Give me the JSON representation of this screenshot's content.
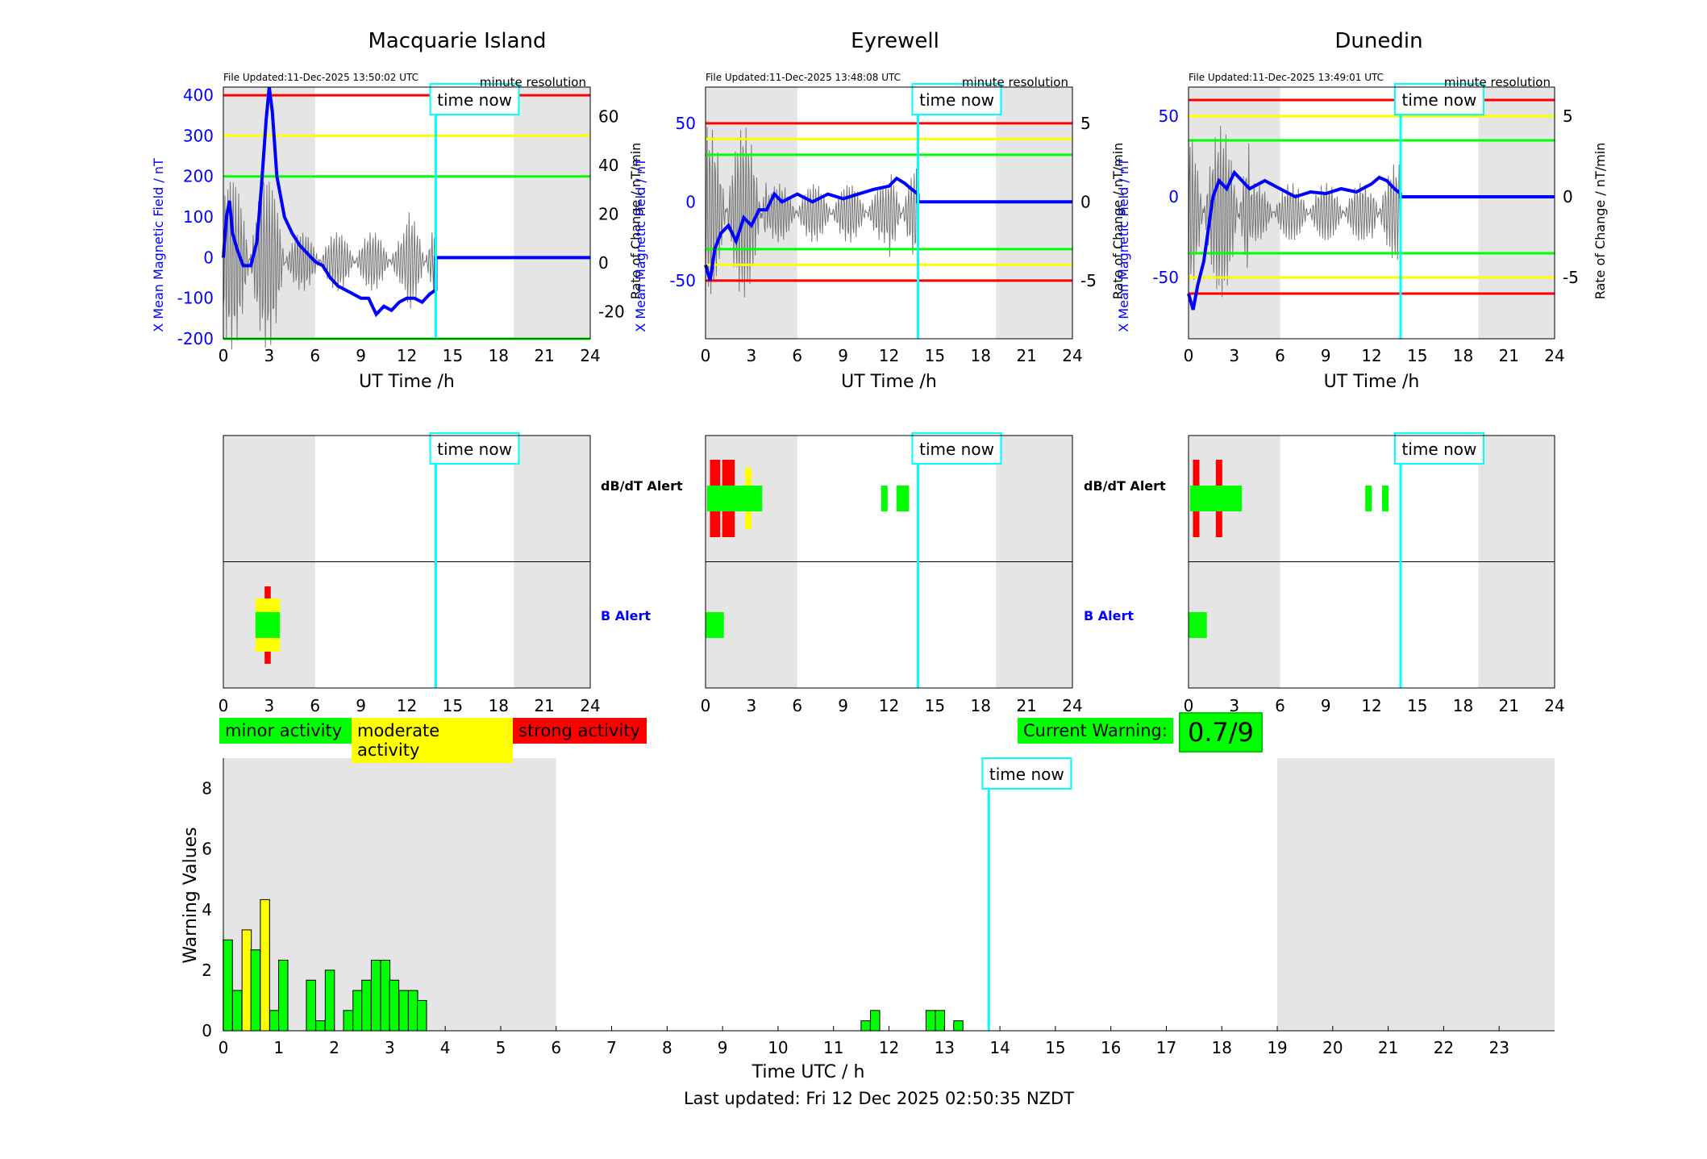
{
  "stations": [
    {
      "name": "Macquarie Island",
      "file_updated": "File Updated:11-Dec-2025 13:50:02 UTC",
      "resolution": "minute resolution",
      "left_ticks": [
        "400",
        "300",
        "200",
        "100",
        "0",
        "-100",
        "-200"
      ],
      "right_ticks": [
        "60",
        "40",
        "20",
        "0",
        "-20"
      ]
    },
    {
      "name": "Eyrewell",
      "file_updated": "File Updated:11-Dec-2025 13:48:08 UTC",
      "resolution": "minute resolution",
      "left_ticks": [
        "50",
        "0",
        "-50"
      ],
      "right_ticks": [
        "5",
        "0",
        "-5"
      ]
    },
    {
      "name": "Dunedin",
      "file_updated": "File Updated:11-Dec-2025 13:49:01 UTC",
      "resolution": "minute resolution",
      "left_ticks": [
        "50",
        "0",
        "-50"
      ],
      "right_ticks": [
        "5",
        "0",
        "-5"
      ]
    }
  ],
  "labels": {
    "time_now": "time now",
    "ut_time": "UT Time /h",
    "y_left": "X Mean Magnetic Field / nT",
    "y_right": "Rate of Change / nT/min",
    "dbdt_alert": "dB/dT Alert",
    "b_alert": "B Alert",
    "warning_values": "Warning Values",
    "time_utc": "Time UTC / h"
  },
  "hour_ticks": [
    "0",
    "3",
    "6",
    "9",
    "12",
    "15",
    "18",
    "21",
    "24"
  ],
  "bottom_hour_ticks": [
    "0",
    "1",
    "2",
    "3",
    "4",
    "5",
    "6",
    "7",
    "8",
    "9",
    "10",
    "11",
    "12",
    "13",
    "14",
    "15",
    "16",
    "17",
    "18",
    "19",
    "20",
    "21",
    "22",
    "23"
  ],
  "warning_ticks": [
    "0",
    "2",
    "4",
    "6",
    "8"
  ],
  "legend": {
    "minor": "minor activity",
    "moderate": "moderate activity",
    "strong": "strong activity"
  },
  "current_warning": {
    "label": "Current Warning:",
    "value": "0.7/9"
  },
  "footer": "Last updated: Fri 12 Dec 2025 02:50:35 NZDT",
  "colors": {
    "minor": "#00ff00",
    "moderate": "#ffff00",
    "strong": "#ff0000",
    "time_now": "#00ffff",
    "shade": "#e5e5e5",
    "field": "#0000ff"
  },
  "chart_data": [
    {
      "type": "bar",
      "title": "",
      "xlabel": "Time UTC / h",
      "ylabel": "Warning Values",
      "ylim": [
        0,
        9
      ],
      "xlim": [
        0,
        24
      ],
      "time_now_h": 13.8,
      "shaded_hours": [
        [
          0,
          6
        ],
        [
          19,
          24
        ]
      ],
      "bars": [
        {
          "x": 0.08,
          "v": 3.0,
          "level": "minor"
        },
        {
          "x": 0.25,
          "v": 1.33,
          "level": "minor"
        },
        {
          "x": 0.42,
          "v": 3.33,
          "level": "moderate"
        },
        {
          "x": 0.58,
          "v": 2.67,
          "level": "minor"
        },
        {
          "x": 0.75,
          "v": 4.33,
          "level": "moderate"
        },
        {
          "x": 0.92,
          "v": 0.67,
          "level": "minor"
        },
        {
          "x": 1.08,
          "v": 2.33,
          "level": "minor"
        },
        {
          "x": 1.58,
          "v": 1.67,
          "level": "minor"
        },
        {
          "x": 1.75,
          "v": 0.33,
          "level": "minor"
        },
        {
          "x": 1.92,
          "v": 2.0,
          "level": "minor"
        },
        {
          "x": 2.25,
          "v": 0.67,
          "level": "minor"
        },
        {
          "x": 2.42,
          "v": 1.33,
          "level": "minor"
        },
        {
          "x": 2.58,
          "v": 1.67,
          "level": "minor"
        },
        {
          "x": 2.75,
          "v": 2.33,
          "level": "minor"
        },
        {
          "x": 2.92,
          "v": 2.33,
          "level": "minor"
        },
        {
          "x": 3.08,
          "v": 1.67,
          "level": "minor"
        },
        {
          "x": 3.25,
          "v": 1.33,
          "level": "minor"
        },
        {
          "x": 3.42,
          "v": 1.33,
          "level": "minor"
        },
        {
          "x": 3.58,
          "v": 1.0,
          "level": "minor"
        },
        {
          "x": 11.58,
          "v": 0.33,
          "level": "minor"
        },
        {
          "x": 11.75,
          "v": 0.67,
          "level": "minor"
        },
        {
          "x": 12.75,
          "v": 0.67,
          "level": "minor"
        },
        {
          "x": 12.92,
          "v": 0.67,
          "level": "minor"
        },
        {
          "x": 13.25,
          "v": 0.33,
          "level": "minor"
        }
      ]
    },
    {
      "station": "Macquarie Island",
      "type": "line",
      "xlim": [
        0,
        24
      ],
      "ylim": [
        -200,
        420
      ],
      "ylim_right": [
        -31,
        72
      ],
      "time_now_h": 13.9,
      "shaded_hours": [
        [
          0,
          6
        ],
        [
          19,
          24
        ]
      ],
      "thresholds": [
        {
          "y": 400,
          "level": "strong"
        },
        {
          "y": 300,
          "level": "moderate"
        },
        {
          "y": 200,
          "level": "minor"
        },
        {
          "y": -200,
          "level": "minor"
        }
      ],
      "field": [
        [
          0,
          0
        ],
        [
          0.2,
          100
        ],
        [
          0.4,
          140
        ],
        [
          0.6,
          60
        ],
        [
          0.9,
          20
        ],
        [
          1.3,
          -20
        ],
        [
          1.8,
          -20
        ],
        [
          2.2,
          40
        ],
        [
          2.5,
          180
        ],
        [
          2.8,
          340
        ],
        [
          3.0,
          420
        ],
        [
          3.2,
          360
        ],
        [
          3.5,
          200
        ],
        [
          4.0,
          100
        ],
        [
          4.5,
          60
        ],
        [
          5.0,
          30
        ],
        [
          5.5,
          10
        ],
        [
          6,
          -10
        ],
        [
          6.5,
          -20
        ],
        [
          7,
          -50
        ],
        [
          7.5,
          -70
        ],
        [
          8,
          -80
        ],
        [
          8.5,
          -90
        ],
        [
          9,
          -100
        ],
        [
          9.5,
          -100
        ],
        [
          10,
          -140
        ],
        [
          10.5,
          -120
        ],
        [
          11,
          -130
        ],
        [
          11.5,
          -110
        ],
        [
          12,
          -100
        ],
        [
          12.5,
          -100
        ],
        [
          13,
          -110
        ],
        [
          13.5,
          -90
        ],
        [
          13.9,
          -80
        ],
        [
          13.9,
          0
        ],
        [
          24,
          0
        ]
      ]
    },
    {
      "station": "Eyrewell",
      "type": "line",
      "xlim": [
        0,
        24
      ],
      "ylim": [
        -87,
        73
      ],
      "ylim_right": [
        -8.7,
        7.3
      ],
      "time_now_h": 13.9,
      "shaded_hours": [
        [
          0,
          6
        ],
        [
          19,
          24
        ]
      ],
      "thresholds": [
        {
          "y": 50,
          "level": "strong"
        },
        {
          "y": 40,
          "level": "moderate"
        },
        {
          "y": 30,
          "level": "minor"
        },
        {
          "y": -30,
          "level": "minor"
        },
        {
          "y": -40,
          "level": "moderate"
        },
        {
          "y": -50,
          "level": "strong"
        }
      ],
      "field": [
        [
          0,
          -40
        ],
        [
          0.3,
          -50
        ],
        [
          0.6,
          -30
        ],
        [
          1,
          -20
        ],
        [
          1.5,
          -15
        ],
        [
          2,
          -25
        ],
        [
          2.5,
          -10
        ],
        [
          3,
          -15
        ],
        [
          3.5,
          -5
        ],
        [
          4,
          -5
        ],
        [
          4.5,
          5
        ],
        [
          5,
          0
        ],
        [
          6,
          5
        ],
        [
          7,
          0
        ],
        [
          8,
          5
        ],
        [
          9,
          2
        ],
        [
          10,
          5
        ],
        [
          11,
          8
        ],
        [
          12,
          10
        ],
        [
          12.5,
          15
        ],
        [
          13,
          12
        ],
        [
          13.5,
          8
        ],
        [
          13.9,
          5
        ],
        [
          13.9,
          0
        ],
        [
          24,
          0
        ]
      ]
    },
    {
      "station": "Dunedin",
      "type": "line",
      "xlim": [
        0,
        24
      ],
      "ylim": [
        -88,
        68
      ],
      "ylim_right": [
        -8.8,
        6.8
      ],
      "time_now_h": 13.9,
      "shaded_hours": [
        [
          0,
          6
        ],
        [
          19,
          24
        ]
      ],
      "thresholds": [
        {
          "y": 60,
          "level": "strong"
        },
        {
          "y": 50,
          "level": "moderate"
        },
        {
          "y": 35,
          "level": "minor"
        },
        {
          "y": -35,
          "level": "minor"
        },
        {
          "y": -50,
          "level": "moderate"
        },
        {
          "y": -60,
          "level": "strong"
        }
      ],
      "field": [
        [
          0,
          -60
        ],
        [
          0.3,
          -70
        ],
        [
          0.6,
          -55
        ],
        [
          1,
          -40
        ],
        [
          1.3,
          -20
        ],
        [
          1.6,
          0
        ],
        [
          2,
          10
        ],
        [
          2.5,
          5
        ],
        [
          3,
          15
        ],
        [
          3.5,
          10
        ],
        [
          4,
          5
        ],
        [
          5,
          10
        ],
        [
          6,
          5
        ],
        [
          7,
          0
        ],
        [
          8,
          3
        ],
        [
          9,
          2
        ],
        [
          10,
          5
        ],
        [
          11,
          3
        ],
        [
          12,
          8
        ],
        [
          12.5,
          12
        ],
        [
          13,
          10
        ],
        [
          13.5,
          5
        ],
        [
          13.9,
          2
        ],
        [
          13.9,
          0
        ],
        [
          24,
          0
        ]
      ]
    }
  ],
  "alerts": [
    {
      "station": "Macquarie Island",
      "dbdt": [],
      "b": [
        {
          "x": 2.9,
          "level": "strong",
          "w": 0.4
        },
        {
          "x": 2.9,
          "level": "moderate",
          "w": 1.6
        },
        {
          "x": 2.9,
          "level": "minor",
          "w": 1.6
        }
      ]
    },
    {
      "station": "Eyrewell",
      "dbdt": [
        [
          0.5,
          "strong"
        ],
        [
          0.75,
          "strong"
        ],
        [
          1.3,
          "strong"
        ],
        [
          1.7,
          "strong"
        ],
        [
          2.8,
          "moderate"
        ],
        [
          3.5,
          "minor"
        ],
        [
          11.7,
          "minor"
        ],
        [
          12.7,
          "minor"
        ],
        [
          13.1,
          "minor"
        ]
      ],
      "b": [
        {
          "x": 0.6,
          "level": "minor"
        }
      ]
    },
    {
      "station": "Dunedin",
      "dbdt": [
        [
          0.5,
          "strong"
        ],
        [
          0.8,
          "minor"
        ],
        [
          2.0,
          "strong"
        ],
        [
          3.0,
          "minor"
        ],
        [
          11.8,
          "minor"
        ],
        [
          12.9,
          "minor"
        ]
      ],
      "b": [
        {
          "x": 0.6,
          "level": "minor"
        }
      ]
    }
  ]
}
